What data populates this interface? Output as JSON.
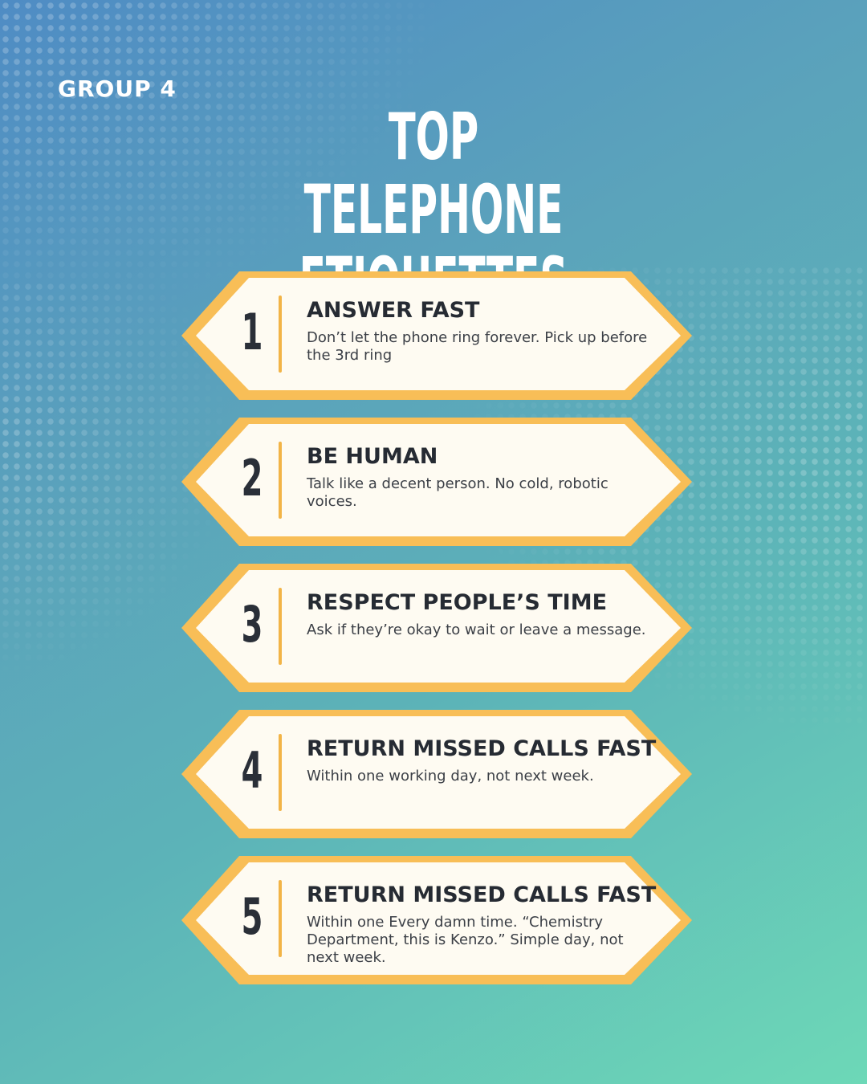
{
  "header": {
    "group_label": "GROUP 4",
    "title_line1": "TOP",
    "title_line2": "TELEPHONE ETIQUETTES"
  },
  "colors": {
    "card_fill": "#fefbf2",
    "card_border": "#f8be57",
    "divider": "#f2b447",
    "text_dark": "#262b33"
  },
  "items": [
    {
      "number": "1",
      "heading": "ANSWER FAST",
      "body": "Don’t let the phone ring forever. Pick up before the 3rd ring"
    },
    {
      "number": "2",
      "heading": "BE HUMAN",
      "body": "Talk like a decent person. No cold, robotic voices."
    },
    {
      "number": "3",
      "heading": "RESPECT PEOPLE’S TIME",
      "body": "Ask if they’re okay to wait or leave a message."
    },
    {
      "number": "4",
      "heading": "RETURN MISSED CALLS FAST",
      "body": "Within one working day, not next week."
    },
    {
      "number": "5",
      "heading": "RETURN MISSED CALLS FAST",
      "body": "Within one Every damn time. “Chemistry Department, this is Kenzo.” Simple day, not next week."
    }
  ]
}
